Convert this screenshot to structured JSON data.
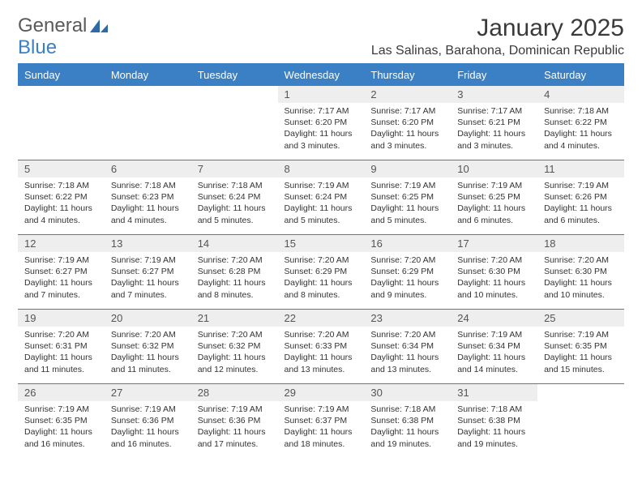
{
  "brand": {
    "part1": "General",
    "part2": "Blue"
  },
  "title": "January 2025",
  "location": "Las Salinas, Barahona, Dominican Republic",
  "colors": {
    "accent": "#3b7fc4",
    "header_text": "#ffffff",
    "daynum_bg": "#eeeeee",
    "text": "#333333",
    "background": "#ffffff"
  },
  "weekdays": [
    "Sunday",
    "Monday",
    "Tuesday",
    "Wednesday",
    "Thursday",
    "Friday",
    "Saturday"
  ],
  "weeks": [
    [
      {
        "day": "",
        "lines": [
          "",
          "",
          "",
          ""
        ]
      },
      {
        "day": "",
        "lines": [
          "",
          "",
          "",
          ""
        ]
      },
      {
        "day": "",
        "lines": [
          "",
          "",
          "",
          ""
        ]
      },
      {
        "day": "1",
        "lines": [
          "Sunrise: 7:17 AM",
          "Sunset: 6:20 PM",
          "Daylight: 11 hours",
          "and 3 minutes."
        ]
      },
      {
        "day": "2",
        "lines": [
          "Sunrise: 7:17 AM",
          "Sunset: 6:20 PM",
          "Daylight: 11 hours",
          "and 3 minutes."
        ]
      },
      {
        "day": "3",
        "lines": [
          "Sunrise: 7:17 AM",
          "Sunset: 6:21 PM",
          "Daylight: 11 hours",
          "and 3 minutes."
        ]
      },
      {
        "day": "4",
        "lines": [
          "Sunrise: 7:18 AM",
          "Sunset: 6:22 PM",
          "Daylight: 11 hours",
          "and 4 minutes."
        ]
      }
    ],
    [
      {
        "day": "5",
        "lines": [
          "Sunrise: 7:18 AM",
          "Sunset: 6:22 PM",
          "Daylight: 11 hours",
          "and 4 minutes."
        ]
      },
      {
        "day": "6",
        "lines": [
          "Sunrise: 7:18 AM",
          "Sunset: 6:23 PM",
          "Daylight: 11 hours",
          "and 4 minutes."
        ]
      },
      {
        "day": "7",
        "lines": [
          "Sunrise: 7:18 AM",
          "Sunset: 6:24 PM",
          "Daylight: 11 hours",
          "and 5 minutes."
        ]
      },
      {
        "day": "8",
        "lines": [
          "Sunrise: 7:19 AM",
          "Sunset: 6:24 PM",
          "Daylight: 11 hours",
          "and 5 minutes."
        ]
      },
      {
        "day": "9",
        "lines": [
          "Sunrise: 7:19 AM",
          "Sunset: 6:25 PM",
          "Daylight: 11 hours",
          "and 5 minutes."
        ]
      },
      {
        "day": "10",
        "lines": [
          "Sunrise: 7:19 AM",
          "Sunset: 6:25 PM",
          "Daylight: 11 hours",
          "and 6 minutes."
        ]
      },
      {
        "day": "11",
        "lines": [
          "Sunrise: 7:19 AM",
          "Sunset: 6:26 PM",
          "Daylight: 11 hours",
          "and 6 minutes."
        ]
      }
    ],
    [
      {
        "day": "12",
        "lines": [
          "Sunrise: 7:19 AM",
          "Sunset: 6:27 PM",
          "Daylight: 11 hours",
          "and 7 minutes."
        ]
      },
      {
        "day": "13",
        "lines": [
          "Sunrise: 7:19 AM",
          "Sunset: 6:27 PM",
          "Daylight: 11 hours",
          "and 7 minutes."
        ]
      },
      {
        "day": "14",
        "lines": [
          "Sunrise: 7:20 AM",
          "Sunset: 6:28 PM",
          "Daylight: 11 hours",
          "and 8 minutes."
        ]
      },
      {
        "day": "15",
        "lines": [
          "Sunrise: 7:20 AM",
          "Sunset: 6:29 PM",
          "Daylight: 11 hours",
          "and 8 minutes."
        ]
      },
      {
        "day": "16",
        "lines": [
          "Sunrise: 7:20 AM",
          "Sunset: 6:29 PM",
          "Daylight: 11 hours",
          "and 9 minutes."
        ]
      },
      {
        "day": "17",
        "lines": [
          "Sunrise: 7:20 AM",
          "Sunset: 6:30 PM",
          "Daylight: 11 hours",
          "and 10 minutes."
        ]
      },
      {
        "day": "18",
        "lines": [
          "Sunrise: 7:20 AM",
          "Sunset: 6:30 PM",
          "Daylight: 11 hours",
          "and 10 minutes."
        ]
      }
    ],
    [
      {
        "day": "19",
        "lines": [
          "Sunrise: 7:20 AM",
          "Sunset: 6:31 PM",
          "Daylight: 11 hours",
          "and 11 minutes."
        ]
      },
      {
        "day": "20",
        "lines": [
          "Sunrise: 7:20 AM",
          "Sunset: 6:32 PM",
          "Daylight: 11 hours",
          "and 11 minutes."
        ]
      },
      {
        "day": "21",
        "lines": [
          "Sunrise: 7:20 AM",
          "Sunset: 6:32 PM",
          "Daylight: 11 hours",
          "and 12 minutes."
        ]
      },
      {
        "day": "22",
        "lines": [
          "Sunrise: 7:20 AM",
          "Sunset: 6:33 PM",
          "Daylight: 11 hours",
          "and 13 minutes."
        ]
      },
      {
        "day": "23",
        "lines": [
          "Sunrise: 7:20 AM",
          "Sunset: 6:34 PM",
          "Daylight: 11 hours",
          "and 13 minutes."
        ]
      },
      {
        "day": "24",
        "lines": [
          "Sunrise: 7:19 AM",
          "Sunset: 6:34 PM",
          "Daylight: 11 hours",
          "and 14 minutes."
        ]
      },
      {
        "day": "25",
        "lines": [
          "Sunrise: 7:19 AM",
          "Sunset: 6:35 PM",
          "Daylight: 11 hours",
          "and 15 minutes."
        ]
      }
    ],
    [
      {
        "day": "26",
        "lines": [
          "Sunrise: 7:19 AM",
          "Sunset: 6:35 PM",
          "Daylight: 11 hours",
          "and 16 minutes."
        ]
      },
      {
        "day": "27",
        "lines": [
          "Sunrise: 7:19 AM",
          "Sunset: 6:36 PM",
          "Daylight: 11 hours",
          "and 16 minutes."
        ]
      },
      {
        "day": "28",
        "lines": [
          "Sunrise: 7:19 AM",
          "Sunset: 6:36 PM",
          "Daylight: 11 hours",
          "and 17 minutes."
        ]
      },
      {
        "day": "29",
        "lines": [
          "Sunrise: 7:19 AM",
          "Sunset: 6:37 PM",
          "Daylight: 11 hours",
          "and 18 minutes."
        ]
      },
      {
        "day": "30",
        "lines": [
          "Sunrise: 7:18 AM",
          "Sunset: 6:38 PM",
          "Daylight: 11 hours",
          "and 19 minutes."
        ]
      },
      {
        "day": "31",
        "lines": [
          "Sunrise: 7:18 AM",
          "Sunset: 6:38 PM",
          "Daylight: 11 hours",
          "and 19 minutes."
        ]
      },
      {
        "day": "",
        "lines": [
          "",
          "",
          "",
          ""
        ]
      }
    ]
  ]
}
